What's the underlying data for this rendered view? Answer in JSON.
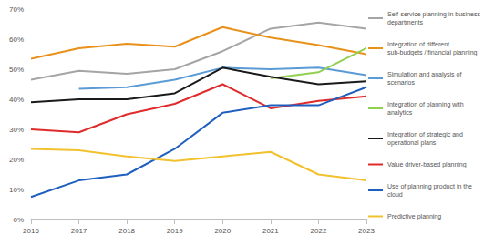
{
  "chart_data": {
    "type": "line",
    "categories": [
      "2016",
      "2017",
      "2018",
      "2019",
      "2020",
      "2021",
      "2022",
      "2023"
    ],
    "ylim": [
      0,
      70
    ],
    "yticks": [
      {
        "value": 0,
        "label": "0%"
      },
      {
        "value": 10,
        "label": "10%"
      },
      {
        "value": 20,
        "label": "20%"
      },
      {
        "value": 30,
        "label": "30%"
      },
      {
        "value": 40,
        "label": "40%"
      },
      {
        "value": 50,
        "label": "50%"
      },
      {
        "value": 60,
        "label": "60%"
      },
      {
        "value": 70,
        "label": "70%"
      }
    ],
    "grid": false,
    "legend": "right",
    "series": [
      {
        "name": "Self-service planning in business departments",
        "color": "#a5a5a5",
        "values": [
          46.5,
          49.5,
          48.5,
          50,
          56,
          63.5,
          65.5,
          63.5
        ]
      },
      {
        "name": "Integration of different sub-budgets / financial planning",
        "color": "#e8901a",
        "values": [
          53.5,
          57,
          58.5,
          57.5,
          64,
          60.5,
          58,
          55
        ]
      },
      {
        "name": "Simulation and analysis of scenarios",
        "color": "#5b9bd5",
        "values": [
          null,
          43.5,
          44,
          46.5,
          50.5,
          50,
          50.5,
          48
        ]
      },
      {
        "name": "Integration of planning with analytics",
        "color": "#92d050",
        "values": [
          null,
          null,
          null,
          null,
          null,
          47,
          49,
          57
        ]
      },
      {
        "name": "Integration of strategic and operational plans",
        "color": "#1a1a1a",
        "values": [
          39,
          40,
          40,
          42,
          50.5,
          47.5,
          45,
          46
        ]
      },
      {
        "name": "Value driver-based planning",
        "color": "#e02b2b",
        "values": [
          30,
          29,
          35,
          38.5,
          45,
          37,
          39.5,
          41
        ]
      },
      {
        "name": "Use of planning product in the cloud",
        "color": "#1f5fbf",
        "values": [
          7.5,
          13,
          15,
          23.5,
          35.5,
          38,
          38,
          44
        ]
      },
      {
        "name": "Predictive planning",
        "color": "#f2c12e",
        "values": [
          23.5,
          23,
          21,
          19.5,
          21,
          22.5,
          15,
          13
        ]
      }
    ]
  }
}
